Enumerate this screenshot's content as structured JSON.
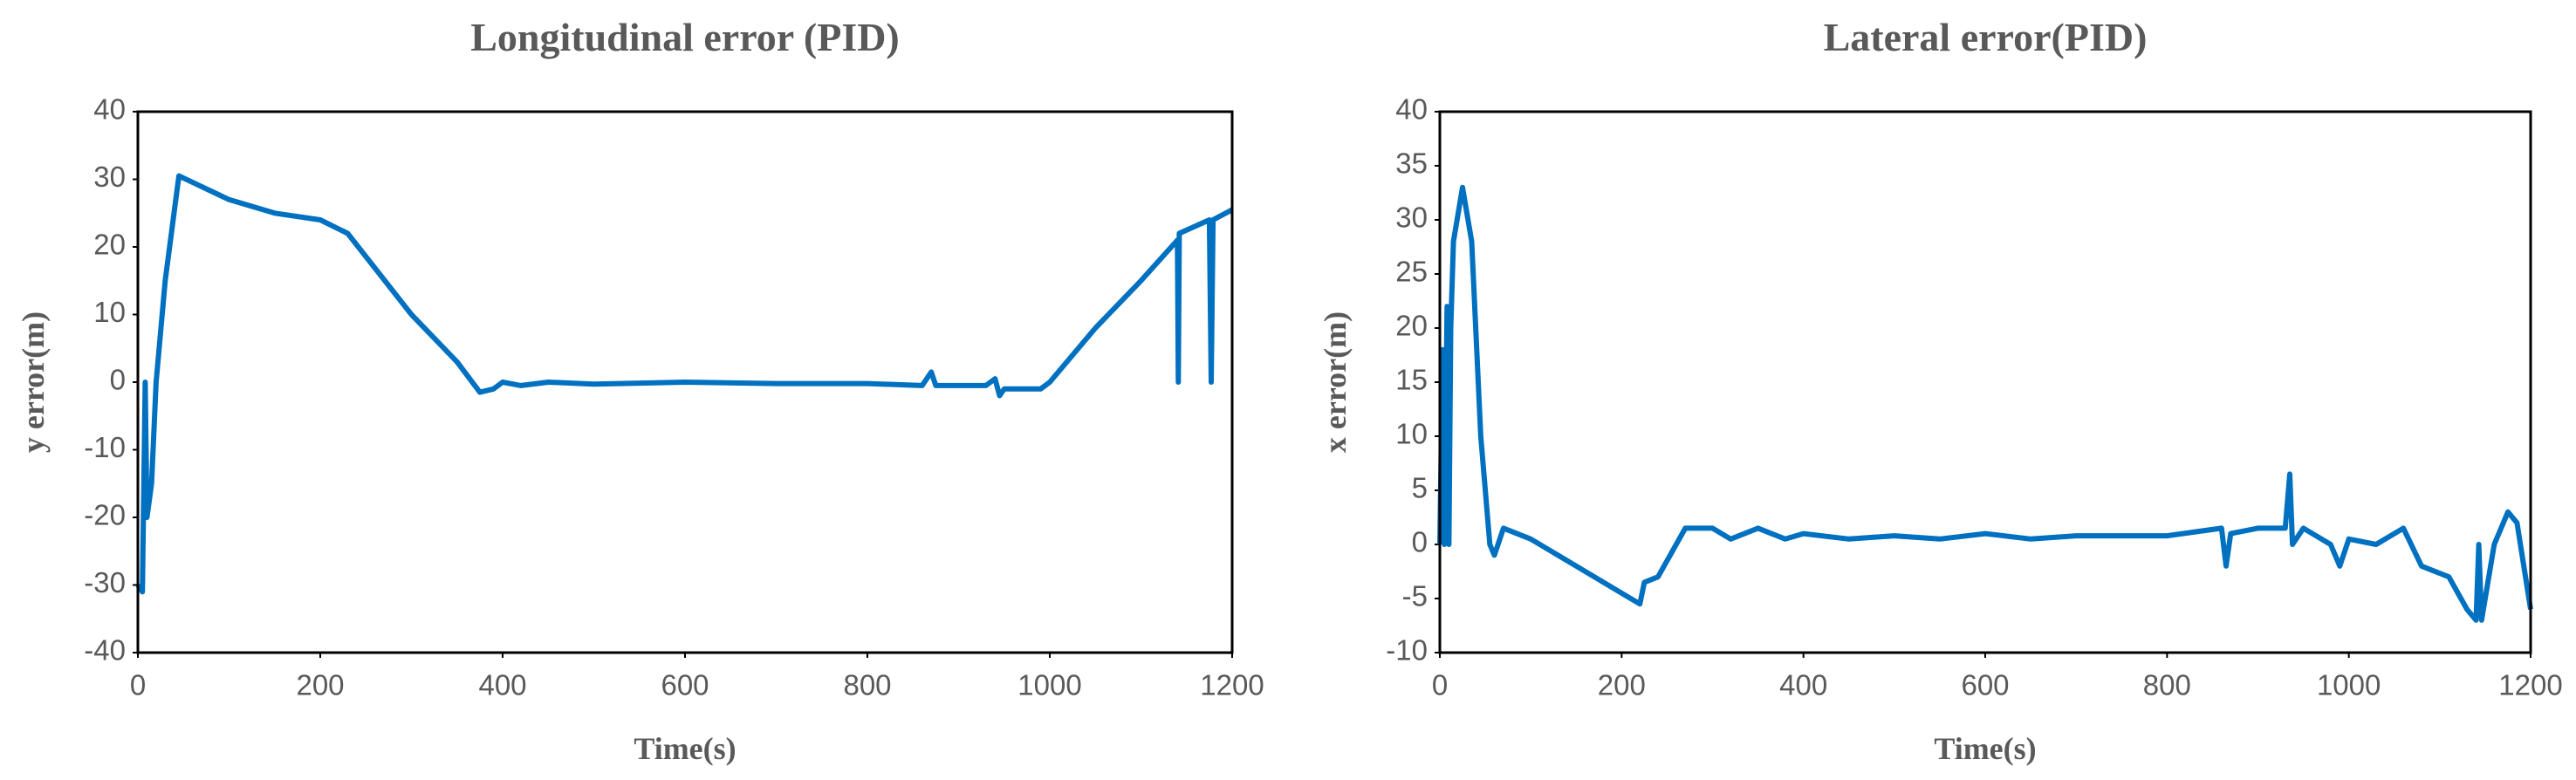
{
  "chart_data": [
    {
      "type": "line",
      "title": "Longitudinal error (PID)",
      "xlabel": "Time(s)",
      "ylabel": "y error(m)",
      "xlim": [
        0,
        1200
      ],
      "xticks": [
        0,
        200,
        400,
        600,
        800,
        1000,
        1200
      ],
      "ylim": [
        -40,
        40
      ],
      "yticks": [
        -40,
        -30,
        -20,
        -10,
        0,
        10,
        20,
        30,
        40
      ],
      "grid": false,
      "series": [
        {
          "name": "y error",
          "color": "#0070c0",
          "x": [
            0,
            5,
            8,
            10,
            15,
            20,
            30,
            45,
            100,
            150,
            200,
            230,
            300,
            350,
            375,
            390,
            400,
            420,
            450,
            500,
            600,
            700,
            800,
            860,
            870,
            875,
            930,
            940,
            945,
            950,
            970,
            990,
            1000,
            1050,
            1100,
            1140,
            1141,
            1142,
            1175,
            1177,
            1179,
            1200
          ],
          "values": [
            -30,
            -31,
            0,
            -20,
            -15,
            0,
            15,
            30.5,
            27,
            25,
            24,
            22,
            10,
            3,
            -1.5,
            -1,
            0,
            -0.5,
            0,
            -0.3,
            0,
            -0.2,
            -0.2,
            -0.5,
            1.5,
            -0.5,
            -0.5,
            0.5,
            -2,
            -1,
            -1,
            -1,
            0,
            8,
            15,
            21,
            0,
            22,
            24,
            0,
            24,
            25.5
          ]
        }
      ]
    },
    {
      "type": "line",
      "title": "Lateral error(PID)",
      "xlabel": "Time(s)",
      "ylabel": "x error(m)",
      "xlim": [
        0,
        1200
      ],
      "xticks": [
        0,
        200,
        400,
        600,
        800,
        1000,
        1200
      ],
      "ylim": [
        -10,
        40
      ],
      "yticks": [
        -10,
        -5,
        0,
        5,
        10,
        15,
        20,
        25,
        30,
        35,
        40
      ],
      "grid": false,
      "series": [
        {
          "name": "x error",
          "color": "#0070c0",
          "x": [
            0,
            3,
            5,
            8,
            10,
            12,
            15,
            25,
            35,
            45,
            55,
            60,
            70,
            100,
            150,
            200,
            220,
            225,
            240,
            270,
            300,
            320,
            350,
            380,
            400,
            450,
            500,
            550,
            600,
            650,
            700,
            800,
            860,
            865,
            870,
            900,
            930,
            935,
            938,
            950,
            980,
            990,
            1000,
            1030,
            1060,
            1080,
            1110,
            1130,
            1140,
            1143,
            1146,
            1160,
            1175,
            1185,
            1200
          ],
          "values": [
            0,
            18,
            0,
            22,
            0,
            20,
            28,
            33,
            28,
            10,
            0,
            -1,
            1.5,
            0.5,
            -2,
            -4.5,
            -5.5,
            -3.5,
            -3,
            1.5,
            1.5,
            0.5,
            1.5,
            0.5,
            1,
            0.5,
            0.8,
            0.5,
            1,
            0.5,
            0.8,
            0.8,
            1.5,
            -2,
            1,
            1.5,
            1.5,
            6.5,
            0,
            1.5,
            0,
            -2,
            0.5,
            0,
            1.5,
            -2,
            -3,
            -6,
            -7,
            0,
            -7,
            0,
            3,
            2,
            -6
          ]
        }
      ]
    }
  ]
}
